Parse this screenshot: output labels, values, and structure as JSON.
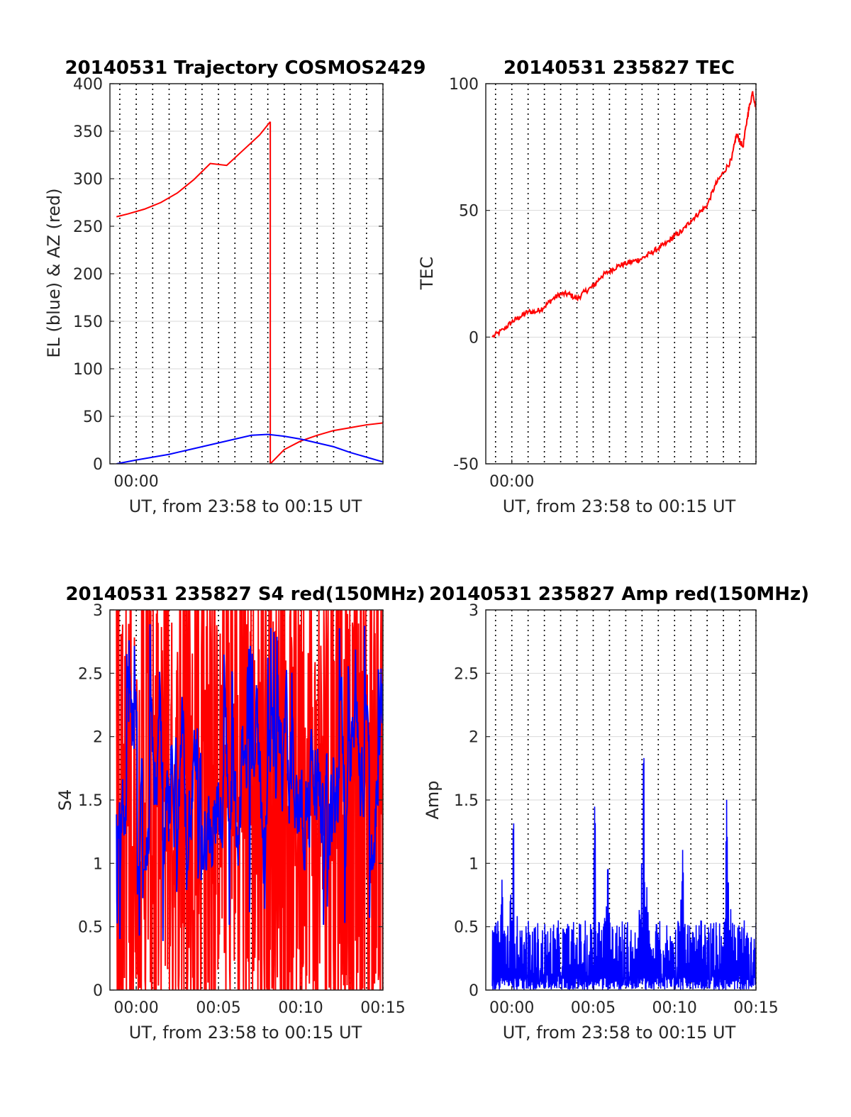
{
  "figure": {
    "background": "#ffffff"
  },
  "colors": {
    "red": "#ff0000",
    "blue": "#0000ff",
    "grid": "#d9d9d9",
    "axis": "#262626"
  },
  "chart_data": [
    {
      "type": "line",
      "title": "20140531 Trajectory COSMOS2429",
      "xlabel": "UT, from 23:58 to 00:15 UT",
      "ylabel": "EL (blue) & AZ (red)",
      "xlim_min": [
        -1.6,
        15.0
      ],
      "ylim": [
        0,
        400
      ],
      "yticks": [
        0,
        50,
        100,
        150,
        200,
        250,
        300,
        350,
        400
      ],
      "xticks": [
        {
          "v": 0,
          "label": "00:00"
        }
      ],
      "grid": true,
      "series": [
        {
          "color": "#ff0000",
          "x": [
            -1.2,
            -0.5,
            0.5,
            1.5,
            2.5,
            3.5,
            4.5,
            5.5,
            6.5,
            7.5,
            8.15
          ],
          "y": [
            260,
            263,
            268,
            275,
            285,
            299,
            316,
            314,
            330,
            346,
            360
          ]
        },
        {
          "color": "#ff0000",
          "x": [
            8.15,
            8.15
          ],
          "y": [
            360,
            0
          ]
        },
        {
          "color": "#ff0000",
          "x": [
            8.15,
            9,
            10,
            11,
            12,
            13,
            14,
            15
          ],
          "y": [
            0,
            15,
            24,
            30,
            35,
            38,
            41,
            43
          ]
        },
        {
          "color": "#0000ff",
          "x": [
            -1.2,
            0,
            1,
            2,
            3,
            4,
            5,
            6,
            7,
            8,
            9,
            10,
            11,
            12,
            13,
            14,
            15
          ],
          "y": [
            0,
            4,
            7,
            10,
            14,
            18,
            22,
            26,
            30,
            31,
            29,
            26,
            22,
            18,
            12,
            7,
            2
          ]
        }
      ]
    },
    {
      "type": "line",
      "title": "20140531 235827 TEC",
      "xlabel": "UT, from 23:58 to 00:15 UT",
      "ylabel": "TEC",
      "xlim_min": [
        -1.6,
        15.0
      ],
      "ylim": [
        -50,
        100
      ],
      "yticks": [
        -50,
        0,
        50,
        100
      ],
      "xticks": [
        {
          "v": 0,
          "label": "00:00"
        }
      ],
      "grid": true,
      "series": [
        {
          "color": "#ff0000",
          "x": [
            -1.2,
            -0.5,
            0,
            0.5,
            1,
            1.5,
            2,
            2.5,
            3,
            3.5,
            4,
            4.5,
            5,
            5.5,
            6,
            6.5,
            7,
            7.5,
            8,
            8.5,
            9,
            9.5,
            10,
            10.5,
            11,
            11.5,
            12,
            12.5,
            13,
            13.5,
            13.8,
            14.2,
            14.5,
            14.8,
            15.0
          ],
          "y": [
            0,
            3,
            6,
            8,
            10,
            10,
            12,
            15,
            17,
            17,
            15,
            18,
            20,
            24,
            26,
            28,
            29,
            30,
            31,
            33,
            35,
            37,
            40,
            42,
            46,
            49,
            52,
            60,
            65,
            70,
            80,
            75,
            88,
            97,
            90
          ]
        }
      ]
    },
    {
      "type": "line",
      "title": "20140531 235827 S4 red(150MHz)",
      "xlabel": "UT, from 23:58 to 00:15 UT",
      "ylabel": "S4",
      "xlim_min": [
        -1.6,
        15.0
      ],
      "ylim": [
        0,
        3
      ],
      "yticks": [
        0,
        0.5,
        1,
        1.5,
        2,
        2.5,
        3
      ],
      "yticklabels": [
        "0",
        "0.5",
        "1",
        "1.5",
        "2",
        "2.5",
        "3"
      ],
      "xticks": [
        {
          "v": 0,
          "label": "00:00"
        },
        {
          "v": 5,
          "label": "00:05"
        },
        {
          "v": 10,
          "label": "00:10"
        },
        {
          "v": 15,
          "label": "00:15"
        }
      ],
      "grid": true,
      "series": [
        {
          "color": "#ff0000",
          "note_style": "dense_noise",
          "x_range": [
            -1.2,
            15.0
          ],
          "min": 0,
          "max": 3,
          "mean": 1.9
        },
        {
          "color": "#0000ff",
          "note_style": "dense_noise",
          "x_range": [
            -1.2,
            15.0
          ],
          "min": 0.35,
          "max": 2.95,
          "mean": 1.55
        }
      ]
    },
    {
      "type": "line",
      "title": "20140531 235827 Amp red(150MHz)",
      "xlabel": "UT, from 23:58 to 00:15 UT",
      "ylabel": "Amp",
      "xlim_min": [
        -1.6,
        15.0
      ],
      "ylim": [
        0,
        3
      ],
      "yticks": [
        0,
        0.5,
        1,
        1.5,
        2,
        2.5,
        3
      ],
      "yticklabels": [
        "0",
        "0.5",
        "1",
        "1.5",
        "2",
        "2.5",
        "3"
      ],
      "xticks": [
        {
          "v": 0,
          "label": "00:00"
        },
        {
          "v": 5,
          "label": "00:05"
        },
        {
          "v": 10,
          "label": "00:10"
        },
        {
          "v": 15,
          "label": "00:15"
        }
      ],
      "grid": true,
      "series": [
        {
          "color": "#0000ff",
          "note_style": "spiky_noise",
          "x_range": [
            -1.2,
            15.0
          ],
          "baseline_max": 0.55,
          "peaks": [
            {
              "x": 0.1,
              "y": 1.45
            },
            {
              "x": 5.1,
              "y": 1.55
            },
            {
              "x": 5.9,
              "y": 1.07
            },
            {
              "x": 8.1,
              "y": 2.03
            },
            {
              "x": 10.5,
              "y": 1.14
            },
            {
              "x": 13.2,
              "y": 1.52
            },
            {
              "x": -0.6,
              "y": 0.9
            }
          ]
        }
      ]
    }
  ]
}
